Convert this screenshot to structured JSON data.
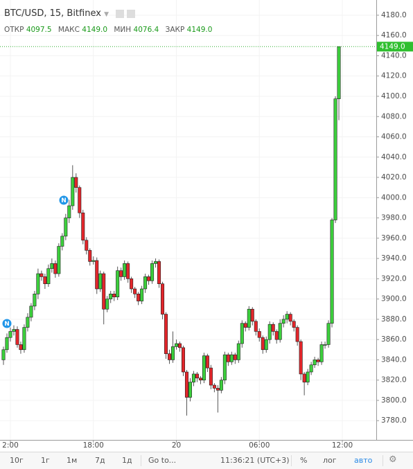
{
  "chart_data": {
    "type": "candlestick",
    "title": "BTC/USD, 15, Bitfinex",
    "legend": {
      "open_label": "ОТКР",
      "open": "4097.5",
      "high_label": "МАКС",
      "high": "4149.0",
      "low_label": "МИН",
      "low": "4076.4",
      "close_label": "ЗАКР",
      "close": "4149.0"
    },
    "last_price_label": "4149.0",
    "event_markers": [
      "N",
      "N"
    ],
    "up_color": "#3ccf3c",
    "down_color": "#e3262b",
    "open": [
      3840,
      3850,
      3862,
      3868,
      3870,
      3855,
      3850,
      3872,
      3882,
      3893,
      3905,
      3925,
      3922,
      3915,
      3930,
      3935,
      3925,
      3952,
      3962,
      3980,
      3992,
      4020,
      4010,
      3985,
      3958,
      3948,
      3937,
      3938,
      3910,
      3925,
      3890,
      3900,
      3905,
      3902,
      3928,
      3922,
      3935,
      3920,
      3910,
      3905,
      3898,
      3910,
      3922,
      3918,
      3935,
      3937,
      3915,
      3885,
      3846,
      3840,
      3853,
      3856,
      3852,
      3828,
      3803,
      3818,
      3826,
      3822,
      3820,
      3844,
      3832,
      3815,
      3812,
      3810,
      3820,
      3845,
      3838,
      3845,
      3840,
      3856,
      3876,
      3872,
      3890,
      3878,
      3868,
      3862,
      3850,
      3860,
      3875,
      3868,
      3860,
      3876,
      3880,
      3885,
      3878,
      3872,
      3858,
      3826,
      3818,
      3828,
      3835,
      3840,
      3838,
      3855,
      3855,
      3876,
      3978,
      4097.5
    ],
    "high": [
      3853,
      3866,
      3872,
      3874,
      3873,
      3858,
      3875,
      3886,
      3896,
      3908,
      3930,
      3928,
      3925,
      3934,
      3940,
      3938,
      3955,
      3965,
      3984,
      3998,
      4032,
      4024,
      4012,
      3988,
      3961,
      3950,
      3942,
      3941,
      3928,
      3927,
      3903,
      3908,
      3908,
      3932,
      3931,
      3938,
      3937,
      3922,
      3912,
      3907,
      3913,
      3925,
      3924,
      3938,
      3940,
      3939,
      3917,
      3887,
      3850,
      3868,
      3860,
      3858,
      3854,
      3830,
      3822,
      3829,
      3828,
      3824,
      3847,
      3846,
      3835,
      3817,
      3815,
      3823,
      3848,
      3847,
      3848,
      3847,
      3859,
      3879,
      3878,
      3893,
      3892,
      3880,
      3871,
      3864,
      3863,
      3878,
      3877,
      3870,
      3880,
      3884,
      3888,
      3887,
      3880,
      3874,
      3860,
      3828,
      3831,
      3838,
      3843,
      3842,
      3858,
      3858,
      3879,
      3980,
      4100,
      4149
    ],
    "low": [
      3835,
      3847,
      3858,
      3864,
      3852,
      3846,
      3847,
      3868,
      3878,
      3889,
      3900,
      3918,
      3910,
      3912,
      3926,
      3921,
      3922,
      3948,
      3958,
      3975,
      3988,
      4005,
      3980,
      3954,
      3944,
      3933,
      3934,
      3905,
      3907,
      3875,
      3887,
      3896,
      3898,
      3899,
      3918,
      3919,
      3916,
      3906,
      3901,
      3894,
      3895,
      3906,
      3914,
      3915,
      3931,
      3911,
      3880,
      3841,
      3836,
      3837,
      3850,
      3848,
      3824,
      3785,
      3799,
      3814,
      3818,
      3816,
      3817,
      3828,
      3811,
      3808,
      3788,
      3807,
      3816,
      3834,
      3835,
      3836,
      3837,
      3852,
      3868,
      3869,
      3874,
      3864,
      3858,
      3846,
      3847,
      3856,
      3864,
      3856,
      3857,
      3872,
      3876,
      3874,
      3868,
      3854,
      3820,
      3805,
      3815,
      3825,
      3832,
      3834,
      3835,
      3851,
      3852,
      3872,
      3975,
      4076.4
    ],
    "close": [
      3850,
      3862,
      3868,
      3870,
      3855,
      3850,
      3872,
      3882,
      3893,
      3905,
      3925,
      3922,
      3915,
      3930,
      3935,
      3925,
      3952,
      3962,
      3980,
      3992,
      4020,
      4010,
      3985,
      3958,
      3948,
      3937,
      3938,
      3910,
      3925,
      3890,
      3900,
      3905,
      3902,
      3928,
      3922,
      3935,
      3920,
      3910,
      3905,
      3898,
      3910,
      3922,
      3918,
      3935,
      3937,
      3915,
      3885,
      3846,
      3840,
      3853,
      3856,
      3852,
      3828,
      3803,
      3818,
      3826,
      3822,
      3820,
      3844,
      3832,
      3815,
      3812,
      3810,
      3820,
      3845,
      3838,
      3845,
      3840,
      3856,
      3876,
      3872,
      3890,
      3878,
      3868,
      3862,
      3850,
      3860,
      3875,
      3868,
      3860,
      3876,
      3880,
      3885,
      3878,
      3872,
      3858,
      3826,
      3818,
      3828,
      3835,
      3840,
      3838,
      3855,
      3855,
      3876,
      3978,
      4097.5,
      4149
    ],
    "xticks": [
      {
        "value": 2,
        "label": "2:00"
      },
      {
        "value": 26,
        "label": "18:00"
      },
      {
        "value": 50,
        "label": "20"
      },
      {
        "value": 74,
        "label": "06:00"
      },
      {
        "value": 98,
        "label": "12:00"
      }
    ],
    "ylim": [
      3761,
      4195
    ],
    "yticks": [
      {
        "value": 3780,
        "label": "3780.0"
      },
      {
        "value": 3800,
        "label": "3800.0"
      },
      {
        "value": 3820,
        "label": "3820.0"
      },
      {
        "value": 3840,
        "label": "3840.0"
      },
      {
        "value": 3860,
        "label": "3860.0"
      },
      {
        "value": 3880,
        "label": "3880.0"
      },
      {
        "value": 3900,
        "label": "3900.0"
      },
      {
        "value": 3920,
        "label": "3920.0"
      },
      {
        "value": 3940,
        "label": "3940.0"
      },
      {
        "value": 3960,
        "label": "3960.0"
      },
      {
        "value": 3980,
        "label": "3980.0"
      },
      {
        "value": 4000,
        "label": "4000.0"
      },
      {
        "value": 4020,
        "label": "4020.0"
      },
      {
        "value": 4040,
        "label": "4040.0"
      },
      {
        "value": 4060,
        "label": "4060.0"
      },
      {
        "value": 4080,
        "label": "4080.0"
      },
      {
        "value": 4100,
        "label": "4100.0"
      },
      {
        "value": 4120,
        "label": "4120.0"
      },
      {
        "value": 4140,
        "label": "4140.0"
      },
      {
        "value": 4160,
        "label": "4160.0"
      },
      {
        "value": 4180,
        "label": "4180.0"
      }
    ]
  },
  "toolbar": {
    "ranges": [
      "10г",
      "1г",
      "1м",
      "7д",
      "1д"
    ],
    "goto": "Go to...",
    "clock": "11:36:21 (UTC+3)",
    "percent": "%",
    "log": "лог",
    "auto": "авто"
  }
}
